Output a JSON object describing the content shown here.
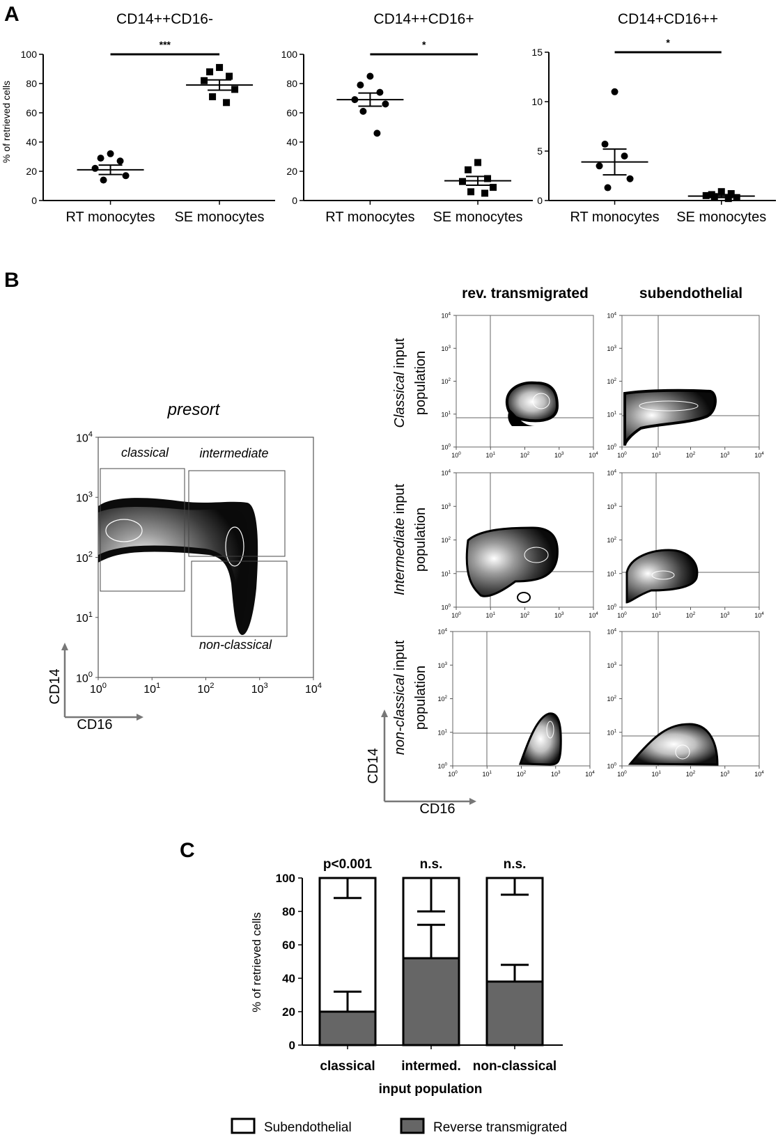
{
  "panel_labels": [
    "A",
    "B",
    "C"
  ],
  "panel_a": {
    "ylabel": "% of retrieved cells",
    "plots": [
      {
        "title": "CD14++CD16-",
        "ymax": 100,
        "ticks": [
          0,
          20,
          40,
          60,
          80,
          100
        ],
        "sig": "***",
        "groups": [
          {
            "label": "RT monocytes",
            "marker": "circle",
            "mean": 21,
            "sem": 3.2,
            "points": [
              32,
              29,
              27,
              22,
              17,
              14
            ]
          },
          {
            "label": "SE monocytes",
            "marker": "square",
            "mean": 79,
            "sem": 3.5,
            "points": [
              91,
              88,
              85,
              82,
              76,
              71,
              67
            ]
          }
        ]
      },
      {
        "title": "CD14++CD16+",
        "ymax": 100,
        "ticks": [
          0,
          20,
          40,
          60,
          80,
          100
        ],
        "sig": "*",
        "groups": [
          {
            "label": "RT monocytes",
            "marker": "circle",
            "mean": 69,
            "sem": 4.5,
            "points": [
              85,
              79,
              74,
              69,
              66,
              61,
              46
            ]
          },
          {
            "label": "SE monocytes",
            "marker": "square",
            "mean": 13.5,
            "sem": 3,
            "points": [
              26,
              21,
              15,
              13,
              9,
              6,
              5
            ]
          }
        ]
      },
      {
        "title": "CD14+CD16++",
        "ymax": 15,
        "ticks": [
          0,
          5,
          10,
          15
        ],
        "sig": "*",
        "groups": [
          {
            "label": "RT monocytes",
            "marker": "circle",
            "mean": 3.9,
            "sem": 1.3,
            "points": [
              11,
              5.7,
              4.5,
              3.5,
              2.2,
              1.3
            ]
          },
          {
            "label": "SE monocytes",
            "marker": "square",
            "mean": 0.45,
            "sem": 0.15,
            "points": [
              0.9,
              0.6,
              0.7,
              0.5,
              0.3,
              0.4,
              0.2
            ]
          }
        ]
      }
    ]
  },
  "panel_b": {
    "col_headers": [
      "rev. transmigrated",
      "subendothelial"
    ],
    "row_labels": [
      {
        "italic": "Classical",
        "rest": " input",
        "line2": "population"
      },
      {
        "italic": "Intermediate",
        "rest": " input",
        "line2": "population"
      },
      {
        "italic": "non-classical",
        "rest": "  input",
        "line2": "population"
      }
    ],
    "presort": {
      "title": "presort",
      "gates": [
        "classical",
        "intermediate",
        "non-classical"
      ],
      "x_axis": "CD16",
      "y_axis": "CD14"
    },
    "axis_ticks": [
      "10",
      "10",
      "10",
      "10",
      "10"
    ],
    "tick_exponents": [
      "0",
      "1",
      "2",
      "3",
      "4"
    ],
    "grid_x_axis": "CD16",
    "grid_y_axis": "CD14"
  },
  "chart_data": [
    {
      "type": "scatter",
      "title": "CD14++CD16-",
      "ylabel": "% of retrieved cells",
      "ylim": [
        0,
        100
      ],
      "categories": [
        "RT monocytes",
        "SE monocytes"
      ],
      "series": [
        {
          "name": "RT monocytes",
          "values": [
            32,
            29,
            27,
            22,
            17,
            14
          ],
          "mean": 21,
          "sem": 3.2
        },
        {
          "name": "SE monocytes",
          "values": [
            91,
            88,
            85,
            82,
            76,
            71,
            67
          ],
          "mean": 79,
          "sem": 3.5
        }
      ],
      "annotation": "***"
    },
    {
      "type": "scatter",
      "title": "CD14++CD16+",
      "ylim": [
        0,
        100
      ],
      "categories": [
        "RT monocytes",
        "SE monocytes"
      ],
      "series": [
        {
          "name": "RT monocytes",
          "values": [
            85,
            79,
            74,
            69,
            66,
            61,
            46
          ],
          "mean": 69,
          "sem": 4.5
        },
        {
          "name": "SE monocytes",
          "values": [
            26,
            21,
            15,
            13,
            9,
            6,
            5
          ],
          "mean": 13.5,
          "sem": 3
        }
      ],
      "annotation": "*"
    },
    {
      "type": "scatter",
      "title": "CD14+CD16++",
      "ylim": [
        0,
        15
      ],
      "categories": [
        "RT monocytes",
        "SE monocytes"
      ],
      "series": [
        {
          "name": "RT monocytes",
          "values": [
            11,
            5.7,
            4.5,
            3.5,
            2.2,
            1.3
          ],
          "mean": 3.9,
          "sem": 1.3
        },
        {
          "name": "SE monocytes",
          "values": [
            0.9,
            0.6,
            0.7,
            0.5,
            0.3,
            0.4,
            0.2
          ],
          "mean": 0.45,
          "sem": 0.15
        }
      ],
      "annotation": "*"
    },
    {
      "type": "bar",
      "stacked": true,
      "xlabel": "input population",
      "ylabel": "% of retrieved cells",
      "ylim": [
        0,
        100
      ],
      "ticks": [
        0,
        20,
        40,
        60,
        80,
        100
      ],
      "categories": [
        "classical",
        "intermed.",
        "non-classical"
      ],
      "annotations": [
        "p<0.001",
        "n.s.",
        "n.s."
      ],
      "series": [
        {
          "name": "Reverse transmigrated",
          "values": [
            20,
            52,
            38
          ],
          "error_upper": [
            32,
            72,
            48
          ]
        },
        {
          "name": "Subendothelial",
          "values": [
            80,
            48,
            62
          ],
          "error_lower": [
            88,
            80,
            90
          ]
        }
      ],
      "legend": [
        "Subendothelial",
        "Reverse transmigrated"
      ],
      "colors": [
        "#ffffff",
        "#666666"
      ]
    }
  ]
}
